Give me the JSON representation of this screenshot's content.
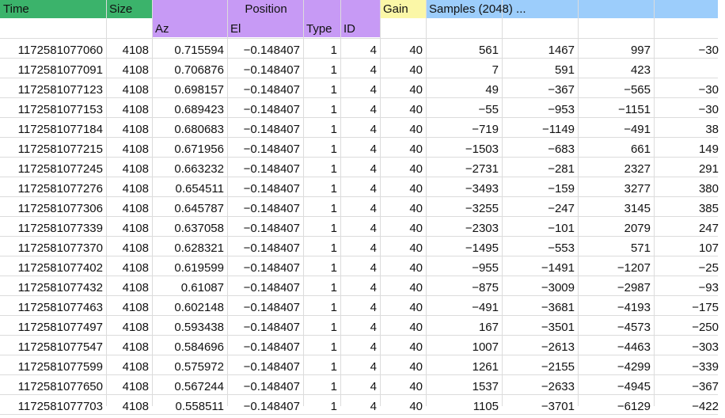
{
  "headers": {
    "time": "Time",
    "size": "Size",
    "position": "Position",
    "gain": "Gain",
    "samples": "Samples (2048) ...",
    "az": "Az",
    "el": "El",
    "type": "Type",
    "id": "ID"
  },
  "colors": {
    "time_size_header": "#3bb36b",
    "position_header": "#c79af5",
    "gain_header": "#fbf7a7",
    "samples_header": "#9ccdfb"
  },
  "rows": [
    [
      "1172581077060",
      "4108",
      "0.715594",
      "−0.148407",
      "1",
      "4",
      "40",
      "561",
      "1467",
      "997",
      "−30"
    ],
    [
      "1172581077091",
      "4108",
      "0.706876",
      "−0.148407",
      "1",
      "4",
      "40",
      "7",
      "591",
      "423",
      ""
    ],
    [
      "1172581077123",
      "4108",
      "0.698157",
      "−0.148407",
      "1",
      "4",
      "40",
      "49",
      "−367",
      "−565",
      "−30"
    ],
    [
      "1172581077153",
      "4108",
      "0.689423",
      "−0.148407",
      "1",
      "4",
      "40",
      "−55",
      "−953",
      "−1151",
      "−30"
    ],
    [
      "1172581077184",
      "4108",
      "0.680683",
      "−0.148407",
      "1",
      "4",
      "40",
      "−719",
      "−1149",
      "−491",
      "38"
    ],
    [
      "1172581077215",
      "4108",
      "0.671956",
      "−0.148407",
      "1",
      "4",
      "40",
      "−1503",
      "−683",
      "661",
      "149"
    ],
    [
      "1172581077245",
      "4108",
      "0.663232",
      "−0.148407",
      "1",
      "4",
      "40",
      "−2731",
      "−281",
      "2327",
      "291"
    ],
    [
      "1172581077276",
      "4108",
      "0.654511",
      "−0.148407",
      "1",
      "4",
      "40",
      "−3493",
      "−159",
      "3277",
      "380"
    ],
    [
      "1172581077306",
      "4108",
      "0.645787",
      "−0.148407",
      "1",
      "4",
      "40",
      "−3255",
      "−247",
      "3145",
      "385"
    ],
    [
      "1172581077339",
      "4108",
      "0.637058",
      "−0.148407",
      "1",
      "4",
      "40",
      "−2303",
      "−101",
      "2079",
      "247"
    ],
    [
      "1172581077370",
      "4108",
      "0.628321",
      "−0.148407",
      "1",
      "4",
      "40",
      "−1495",
      "−553",
      "571",
      "107"
    ],
    [
      "1172581077402",
      "4108",
      "0.619599",
      "−0.148407",
      "1",
      "4",
      "40",
      "−955",
      "−1491",
      "−1207",
      "−25"
    ],
    [
      "1172581077432",
      "4108",
      "0.61087",
      "−0.148407",
      "1",
      "4",
      "40",
      "−875",
      "−3009",
      "−2987",
      "−93"
    ],
    [
      "1172581077463",
      "4108",
      "0.602148",
      "−0.148407",
      "1",
      "4",
      "40",
      "−491",
      "−3681",
      "−4193",
      "−175"
    ],
    [
      "1172581077497",
      "4108",
      "0.593438",
      "−0.148407",
      "1",
      "4",
      "40",
      "167",
      "−3501",
      "−4573",
      "−250"
    ],
    [
      "1172581077547",
      "4108",
      "0.584696",
      "−0.148407",
      "1",
      "4",
      "40",
      "1007",
      "−2613",
      "−4463",
      "−303"
    ],
    [
      "1172581077599",
      "4108",
      "0.575972",
      "−0.148407",
      "1",
      "4",
      "40",
      "1261",
      "−2155",
      "−4299",
      "−339"
    ],
    [
      "1172581077650",
      "4108",
      "0.567244",
      "−0.148407",
      "1",
      "4",
      "40",
      "1537",
      "−2633",
      "−4945",
      "−367"
    ],
    [
      "1172581077703",
      "4108",
      "0.558511",
      "−0.148407",
      "1",
      "4",
      "40",
      "1105",
      "−3701",
      "−6129",
      "−422"
    ]
  ]
}
